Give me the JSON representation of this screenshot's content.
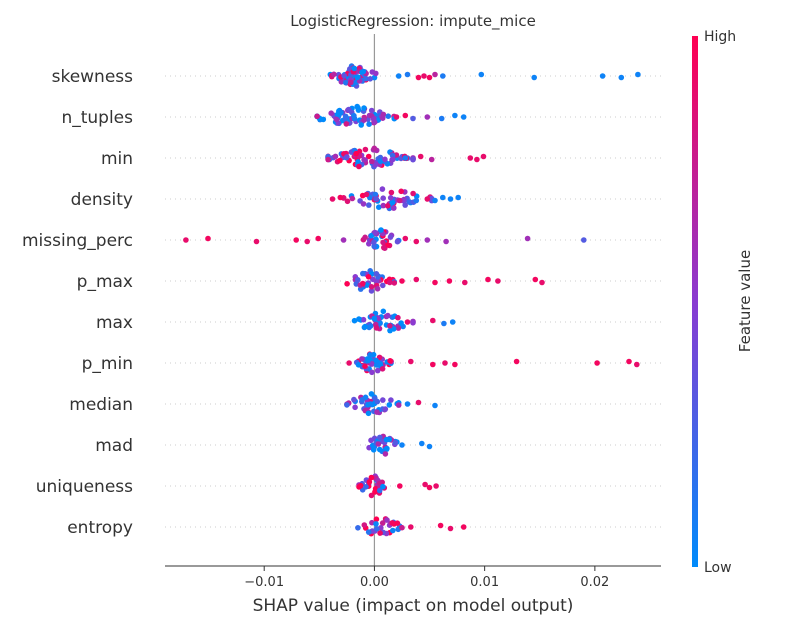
{
  "chart_data": {
    "type": "scatter",
    "title": "LogisticRegression: impute_mice",
    "xlabel": "SHAP value (impact on model output)",
    "xlim": [
      -0.019,
      0.026
    ],
    "xticks": [
      -0.01,
      0.0,
      0.01,
      0.02
    ],
    "xtick_labels": [
      "−0.01",
      "0.00",
      "0.01",
      "0.02"
    ],
    "colorbar": {
      "label": "Feature value",
      "high": "High",
      "low": "Low",
      "high_color": "#ff0052",
      "low_color": "#008bfb"
    },
    "features": [
      {
        "name": "skewness",
        "outliers": [
          {
            "x": 0.0022,
            "c": 0.05
          },
          {
            "x": 0.003,
            "c": 0.1
          },
          {
            "x": 0.004,
            "c": 0.95
          },
          {
            "x": 0.0045,
            "c": 0.9
          },
          {
            "x": 0.005,
            "c": 0.95
          },
          {
            "x": 0.0055,
            "c": 0.7
          },
          {
            "x": 0.0062,
            "c": 0.1
          },
          {
            "x": 0.0097,
            "c": 0.05
          },
          {
            "x": 0.0145,
            "c": 0.05
          },
          {
            "x": 0.0207,
            "c": 0.05
          },
          {
            "x": 0.0224,
            "c": 0.05
          },
          {
            "x": 0.0239,
            "c": 0.05
          }
        ],
        "core": {
          "min": -0.004,
          "max": 0.0003,
          "n": 70,
          "hue": 0.35
        }
      },
      {
        "name": "n_tuples",
        "outliers": [
          {
            "x": 0.002,
            "c": 0.9
          },
          {
            "x": 0.0028,
            "c": 0.95
          },
          {
            "x": 0.0035,
            "c": 0.3
          },
          {
            "x": 0.0048,
            "c": 0.6
          },
          {
            "x": 0.0061,
            "c": 0.1
          },
          {
            "x": 0.0073,
            "c": 0.05
          },
          {
            "x": 0.0081,
            "c": 0.05
          }
        ],
        "core": {
          "min": -0.0052,
          "max": 0.0018,
          "n": 80,
          "hue": 0.2
        }
      },
      {
        "name": "min",
        "outliers": [
          {
            "x": 0.0028,
            "c": 0.1
          },
          {
            "x": 0.0042,
            "c": 0.9
          },
          {
            "x": 0.0052,
            "c": 0.7
          },
          {
            "x": 0.0087,
            "c": 0.9
          },
          {
            "x": 0.0093,
            "c": 0.9
          },
          {
            "x": 0.0099,
            "c": 0.9
          }
        ],
        "core": {
          "min": -0.0042,
          "max": 0.0035,
          "n": 75,
          "hue": 0.6
        }
      },
      {
        "name": "density",
        "outliers": [
          {
            "x": -0.0038,
            "c": 0.9
          },
          {
            "x": -0.0031,
            "c": 0.95
          },
          {
            "x": 0.0038,
            "c": 0.1
          },
          {
            "x": 0.0048,
            "c": 0.9
          },
          {
            "x": 0.0055,
            "c": 0.05
          },
          {
            "x": 0.0062,
            "c": 0.05
          },
          {
            "x": 0.0069,
            "c": 0.05
          },
          {
            "x": 0.0076,
            "c": 0.05
          }
        ],
        "core": {
          "min": -0.0028,
          "max": 0.0052,
          "n": 55,
          "hue": 0.45
        }
      },
      {
        "name": "missing_perc",
        "outliers": [
          {
            "x": -0.0171,
            "c": 0.9
          },
          {
            "x": -0.0151,
            "c": 0.95
          },
          {
            "x": -0.0107,
            "c": 0.9
          },
          {
            "x": -0.0071,
            "c": 0.95
          },
          {
            "x": -0.0061,
            "c": 0.9
          },
          {
            "x": -0.0051,
            "c": 0.95
          },
          {
            "x": -0.0028,
            "c": 0.6
          },
          {
            "x": 0.0028,
            "c": 0.9
          },
          {
            "x": 0.0038,
            "c": 0.9
          },
          {
            "x": 0.0048,
            "c": 0.6
          },
          {
            "x": 0.0065,
            "c": 0.6
          },
          {
            "x": 0.0139,
            "c": 0.6
          },
          {
            "x": 0.019,
            "c": 0.3
          }
        ],
        "core": {
          "min": -0.001,
          "max": 0.0022,
          "n": 35,
          "hue": 0.5
        }
      },
      {
        "name": "p_max",
        "outliers": [
          {
            "x": 0.0025,
            "c": 0.95
          },
          {
            "x": 0.0038,
            "c": 0.9
          },
          {
            "x": 0.0055,
            "c": 0.95
          },
          {
            "x": 0.0068,
            "c": 0.95
          },
          {
            "x": 0.0082,
            "c": 0.9
          },
          {
            "x": 0.0103,
            "c": 0.95
          },
          {
            "x": 0.0112,
            "c": 0.9
          },
          {
            "x": 0.0146,
            "c": 0.95
          },
          {
            "x": 0.0152,
            "c": 0.9
          }
        ],
        "core": {
          "min": -0.0028,
          "max": 0.0018,
          "n": 40,
          "hue": 0.55
        }
      },
      {
        "name": "max",
        "outliers": [
          {
            "x": 0.003,
            "c": 0.9
          },
          {
            "x": 0.0053,
            "c": 0.9
          },
          {
            "x": 0.0063,
            "c": 0.1
          },
          {
            "x": 0.0071,
            "c": 0.05
          }
        ],
        "core": {
          "min": -0.002,
          "max": 0.0035,
          "n": 45,
          "hue": 0.25
        }
      },
      {
        "name": "p_min",
        "outliers": [
          {
            "x": -0.0023,
            "c": 0.9
          },
          {
            "x": 0.0033,
            "c": 0.9
          },
          {
            "x": 0.0053,
            "c": 0.95
          },
          {
            "x": 0.0064,
            "c": 0.9
          },
          {
            "x": 0.0073,
            "c": 0.95
          },
          {
            "x": 0.0129,
            "c": 0.95
          },
          {
            "x": 0.0202,
            "c": 0.95
          },
          {
            "x": 0.0231,
            "c": 0.95
          },
          {
            "x": 0.0238,
            "c": 0.9
          }
        ],
        "core": {
          "min": -0.0018,
          "max": 0.0015,
          "n": 40,
          "hue": 0.45
        }
      },
      {
        "name": "median",
        "outliers": [
          {
            "x": 0.003,
            "c": 0.05
          },
          {
            "x": 0.004,
            "c": 0.9
          },
          {
            "x": 0.0055,
            "c": 0.05
          }
        ],
        "core": {
          "min": -0.0025,
          "max": 0.0022,
          "n": 40,
          "hue": 0.25
        }
      },
      {
        "name": "mad",
        "outliers": [
          {
            "x": 0.0025,
            "c": 0.05
          },
          {
            "x": 0.0043,
            "c": 0.05
          },
          {
            "x": 0.005,
            "c": 0.05
          }
        ],
        "core": {
          "min": -0.0008,
          "max": 0.0022,
          "n": 30,
          "hue": 0.25
        }
      },
      {
        "name": "uniqueness",
        "outliers": [
          {
            "x": 0.0023,
            "c": 0.95
          },
          {
            "x": 0.0046,
            "c": 0.9
          },
          {
            "x": 0.005,
            "c": 0.95
          },
          {
            "x": 0.0056,
            "c": 0.9
          }
        ],
        "core": {
          "min": -0.0014,
          "max": 0.0012,
          "n": 30,
          "hue": 0.55
        }
      },
      {
        "name": "entropy",
        "outliers": [
          {
            "x": 0.0033,
            "c": 0.9
          },
          {
            "x": 0.006,
            "c": 0.95
          },
          {
            "x": 0.0069,
            "c": 0.9
          },
          {
            "x": 0.0081,
            "c": 0.95
          }
        ],
        "core": {
          "min": -0.0015,
          "max": 0.0025,
          "n": 30,
          "hue": 0.6
        }
      }
    ]
  }
}
